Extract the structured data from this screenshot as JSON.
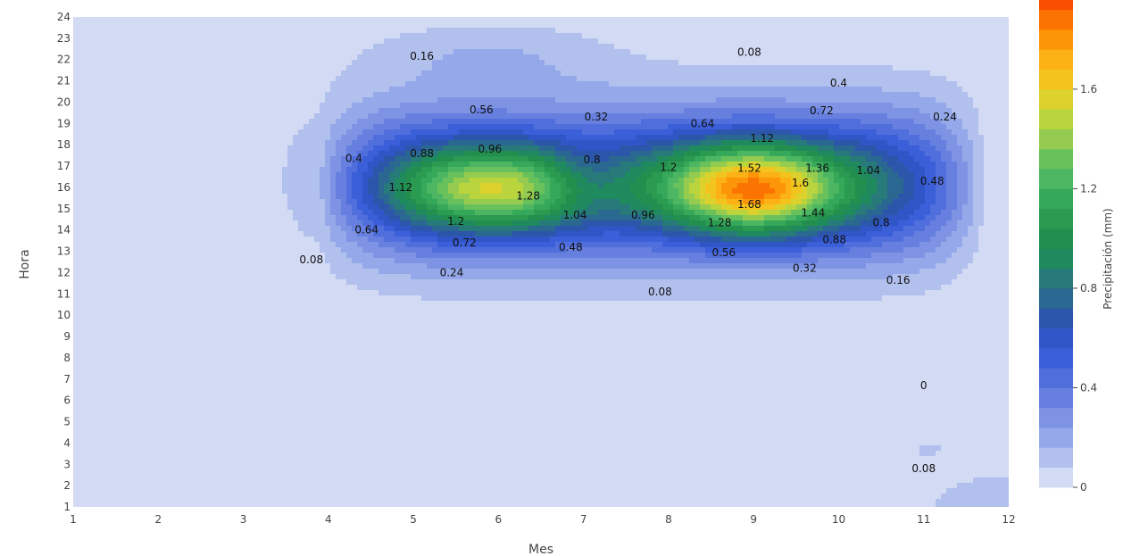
{
  "chart_data": {
    "type": "contour",
    "xlabel": "Mes",
    "ylabel": "Hora",
    "xlim": [
      1,
      12
    ],
    "ylim": [
      1,
      24
    ],
    "x_ticks": [
      "1",
      "2",
      "3",
      "4",
      "5",
      "6",
      "7",
      "8",
      "9",
      "10",
      "11",
      "12"
    ],
    "y_ticks": [
      "1",
      "2",
      "3",
      "4",
      "5",
      "6",
      "7",
      "8",
      "9",
      "10",
      "11",
      "12",
      "13",
      "14",
      "15",
      "16",
      "17",
      "18",
      "19",
      "20",
      "21",
      "22",
      "23",
      "24"
    ],
    "colorbar": {
      "title": "Precipitación (mm)",
      "range": [
        0,
        1.76
      ],
      "step": 0.08,
      "ticks": [
        "0",
        "0.4",
        "0.8",
        "1.2",
        "1.6"
      ],
      "colors": [
        "#d3daf4",
        "#b2c0ee",
        "#95a9ea",
        "#7e93e3",
        "#6780df",
        "#516edd",
        "#3b5fd8",
        "#2f55c7",
        "#2c56a9",
        "#2a6791",
        "#27797a",
        "#1f8a5e",
        "#238f4e",
        "#2a9b51",
        "#35a959",
        "#4db663",
        "#69c15b",
        "#95cb4f",
        "#b9d43d",
        "#dcd12d",
        "#f2c41d",
        "#fcb114",
        "#fc9507",
        "#fb7300",
        "#f74e00",
        "#ef2700",
        "#ea0000"
      ]
    },
    "peaks": [
      {
        "x": 9,
        "y": 15.9,
        "value": 1.76
      },
      {
        "x": 6,
        "y": 16.0,
        "value": 1.38
      }
    ],
    "contour_labels": [
      {
        "text": "0.16",
        "x": 5.1,
        "y": 22.15
      },
      {
        "text": "0.08",
        "x": 8.95,
        "y": 22.35
      },
      {
        "text": "0.4",
        "x": 10.0,
        "y": 20.9
      },
      {
        "text": "0.24",
        "x": 11.25,
        "y": 19.3
      },
      {
        "text": "0.56",
        "x": 5.8,
        "y": 19.65
      },
      {
        "text": "0.32",
        "x": 7.15,
        "y": 19.3
      },
      {
        "text": "0.64",
        "x": 8.4,
        "y": 19.0
      },
      {
        "text": "0.72",
        "x": 9.8,
        "y": 19.6
      },
      {
        "text": "0.4",
        "x": 4.3,
        "y": 17.35
      },
      {
        "text": "0.88",
        "x": 5.1,
        "y": 17.6
      },
      {
        "text": "0.96",
        "x": 5.9,
        "y": 17.8
      },
      {
        "text": "1.12",
        "x": 9.1,
        "y": 18.3
      },
      {
        "text": "0.8",
        "x": 7.1,
        "y": 17.3
      },
      {
        "text": "1.2",
        "x": 8.0,
        "y": 16.95
      },
      {
        "text": "1.36",
        "x": 9.75,
        "y": 16.9
      },
      {
        "text": "1.04",
        "x": 10.35,
        "y": 16.8
      },
      {
        "text": "1.52",
        "x": 8.95,
        "y": 16.9
      },
      {
        "text": "1.6",
        "x": 9.55,
        "y": 16.2
      },
      {
        "text": "0.48",
        "x": 11.1,
        "y": 16.3
      },
      {
        "text": "1.12",
        "x": 4.85,
        "y": 16.0
      },
      {
        "text": "1.28",
        "x": 6.35,
        "y": 15.6
      },
      {
        "text": "1.68",
        "x": 8.95,
        "y": 15.2
      },
      {
        "text": "1.44",
        "x": 9.7,
        "y": 14.8
      },
      {
        "text": "1.2",
        "x": 5.5,
        "y": 14.4
      },
      {
        "text": "1.04",
        "x": 6.9,
        "y": 14.7
      },
      {
        "text": "0.96",
        "x": 7.7,
        "y": 14.7
      },
      {
        "text": "1.28",
        "x": 8.6,
        "y": 14.35
      },
      {
        "text": "0.8",
        "x": 10.5,
        "y": 14.35
      },
      {
        "text": "0.64",
        "x": 4.45,
        "y": 14.0
      },
      {
        "text": "0.72",
        "x": 5.6,
        "y": 13.4
      },
      {
        "text": "0.48",
        "x": 6.85,
        "y": 13.2
      },
      {
        "text": "0.88",
        "x": 9.95,
        "y": 13.55
      },
      {
        "text": "0.56",
        "x": 8.65,
        "y": 12.95
      },
      {
        "text": "0.08",
        "x": 3.8,
        "y": 12.6
      },
      {
        "text": "0.24",
        "x": 5.45,
        "y": 12.0
      },
      {
        "text": "0.32",
        "x": 9.6,
        "y": 12.2
      },
      {
        "text": "0.16",
        "x": 10.7,
        "y": 11.65
      },
      {
        "text": "0.08",
        "x": 7.9,
        "y": 11.1
      },
      {
        "text": "0",
        "x": 11.0,
        "y": 6.7
      },
      {
        "text": "0.08",
        "x": 11.0,
        "y": 2.8
      }
    ]
  }
}
